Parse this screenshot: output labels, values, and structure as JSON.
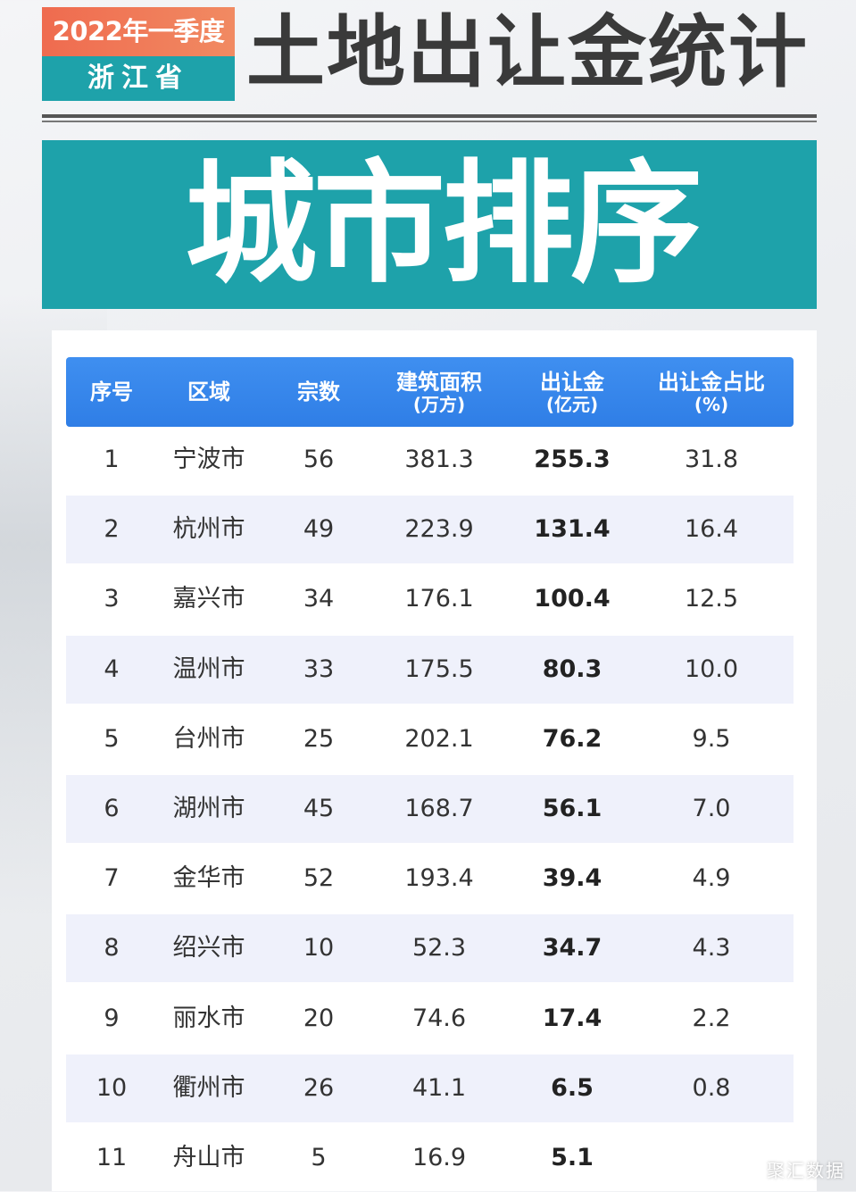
{
  "header": {
    "badge_top": "2022年一季度",
    "badge_bottom": "浙江省",
    "title": "土地出让金统计",
    "banner": "城市排序"
  },
  "table": {
    "columns": [
      {
        "main": "序号",
        "sub": ""
      },
      {
        "main": "区域",
        "sub": ""
      },
      {
        "main": "宗数",
        "sub": ""
      },
      {
        "main": "建筑面积",
        "sub": "(万方)"
      },
      {
        "main": "出让金",
        "sub": "(亿元)"
      },
      {
        "main": "出让金占比",
        "sub": "(%)"
      }
    ],
    "rows": [
      [
        "1",
        "宁波市",
        "56",
        "381.3",
        "255.3",
        "31.8"
      ],
      [
        "2",
        "杭州市",
        "49",
        "223.9",
        "131.4",
        "16.4"
      ],
      [
        "3",
        "嘉兴市",
        "34",
        "176.1",
        "100.4",
        "12.5"
      ],
      [
        "4",
        "温州市",
        "33",
        "175.5",
        "80.3",
        "10.0"
      ],
      [
        "5",
        "台州市",
        "25",
        "202.1",
        "76.2",
        "9.5"
      ],
      [
        "6",
        "湖州市",
        "45",
        "168.7",
        "56.1",
        "7.0"
      ],
      [
        "7",
        "金华市",
        "52",
        "193.4",
        "39.4",
        "4.9"
      ],
      [
        "8",
        "绍兴市",
        "10",
        "52.3",
        "34.7",
        "4.3"
      ],
      [
        "9",
        "丽水市",
        "20",
        "74.6",
        "17.4",
        "2.2"
      ],
      [
        "10",
        "衢州市",
        "26",
        "41.1",
        "6.5",
        "0.8"
      ],
      [
        "11",
        "舟山市",
        "5",
        "16.9",
        "5.1",
        ""
      ]
    ]
  },
  "watermark": "聚汇数据",
  "colors": {
    "teal": "#1ea2aa",
    "orange": "#ef6b4f",
    "header_blue": "#3a89ee",
    "row_alt": "#eff1fb"
  }
}
